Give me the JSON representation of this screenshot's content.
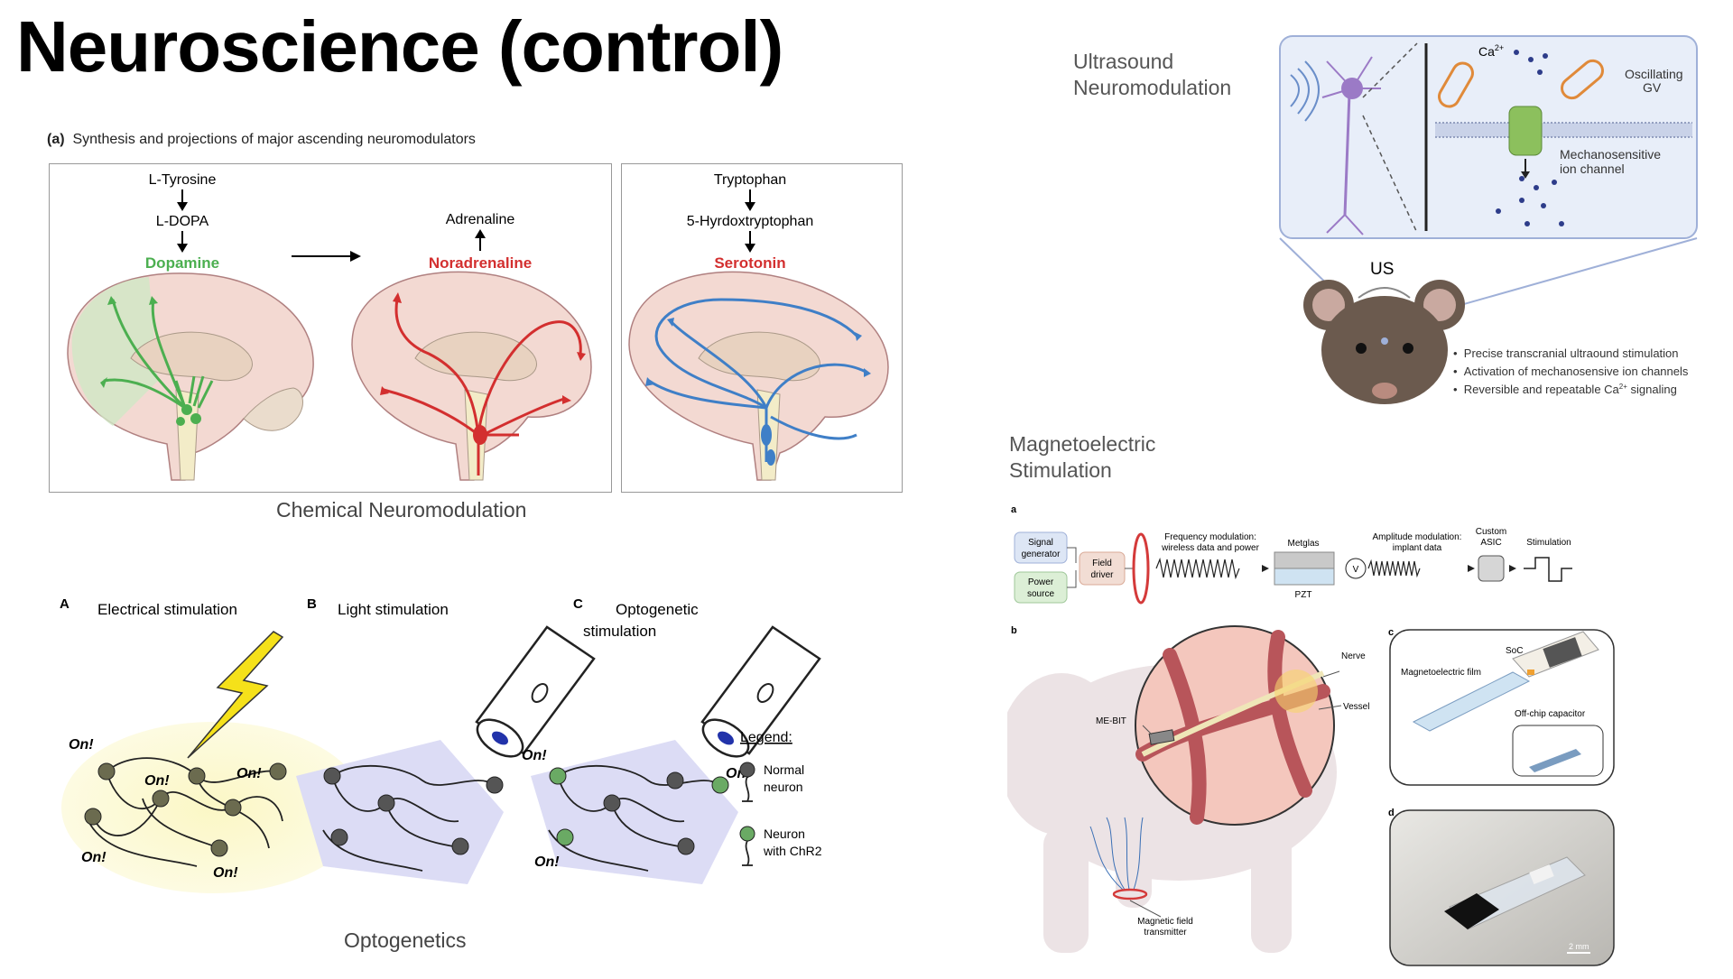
{
  "slide": {
    "title": "Neuroscience (control)"
  },
  "chemical": {
    "figure_title_prefix": "(a)",
    "figure_title": "Synthesis and projections of major ascending neuromodulators",
    "caption": "Chemical Neuromodulation",
    "panel1": {
      "precursor1": "L-Tyrosine",
      "precursor2": "L-DOPA",
      "product": "Dopamine"
    },
    "panel2": {
      "precursor": "Adrenaline",
      "product": "Noradrenaline"
    },
    "panel3": {
      "precursor1": "Tryptophan",
      "precursor2": "5-Hyrdoxtryptophan",
      "product": "Serotonin"
    },
    "colors": {
      "dopamine": "#4caf50",
      "noradrenaline": "#d32f2f",
      "serotonin": "#3f7fc7"
    }
  },
  "optogenetics": {
    "caption": "Optogenetics",
    "panelA": {
      "letter": "A",
      "title": "Electrical stimulation",
      "on_label": "On!"
    },
    "panelB": {
      "letter": "B",
      "title": "Light stimulation"
    },
    "panelC": {
      "letter": "C",
      "title_line1": "Optogenetic",
      "title_line2": "stimulation",
      "on_label": "On!"
    },
    "legend": {
      "title": "Legend:",
      "normal_line1": "Normal",
      "normal_line2": "neuron",
      "chr2_line1": "Neuron",
      "chr2_line2": "with ChR2"
    },
    "colors": {
      "normal": "#555555",
      "chr2": "#6aaa64",
      "bolt": "#f5e11a",
      "glow": "#fbf7c5",
      "light": "#dcdcf5"
    }
  },
  "ultrasound": {
    "label": "Ultrasound\nNeuromodulation",
    "ca_label": "Ca",
    "ca_sup": "2+",
    "gv_label_line1": "Oscillating",
    "gv_label_line2": "GV",
    "channel_label_line1": "Mechanosensitive",
    "channel_label_line2": "ion channel",
    "us_label": "US",
    "bullets": [
      "Precise transcranial ultraound stimulation",
      "Activation of mechanosensive ion channels",
      "Reversible and repeatable Ca"
    ],
    "bullet3_sup": "2+",
    "bullet3_suffix": " signaling"
  },
  "magnetoelectric": {
    "label": "Magnetoelectric\nStimulation",
    "panel_a": "a",
    "panel_b": "b",
    "panel_c": "c",
    "panel_d": "d",
    "signal_generator_line1": "Signal",
    "signal_generator_line2": "generator",
    "power_source_line1": "Power",
    "power_source_line2": "source",
    "field_driver_line1": "Field",
    "field_driver_line2": "driver",
    "freq_mod_line1": "Frequency modulation:",
    "freq_mod_line2": "wireless data and power",
    "metglas": "Metglas",
    "pzt": "PZT",
    "v_symbol": "V",
    "amp_mod_line1": "Amplitude modulation:",
    "amp_mod_line2": "implant data",
    "asic_line1": "Custom",
    "asic_line2": "ASIC",
    "stimulation": "Stimulation",
    "nerve": "Nerve",
    "vessel": "Vessel",
    "me_bit": "ME-BIT",
    "transmitter_line1": "Magnetic field",
    "transmitter_line2": "transmitter",
    "soc": "SoC",
    "film": "Magnetoelectric film",
    "capacitor": "Off-chip capacitor",
    "scale": "2 mm"
  }
}
